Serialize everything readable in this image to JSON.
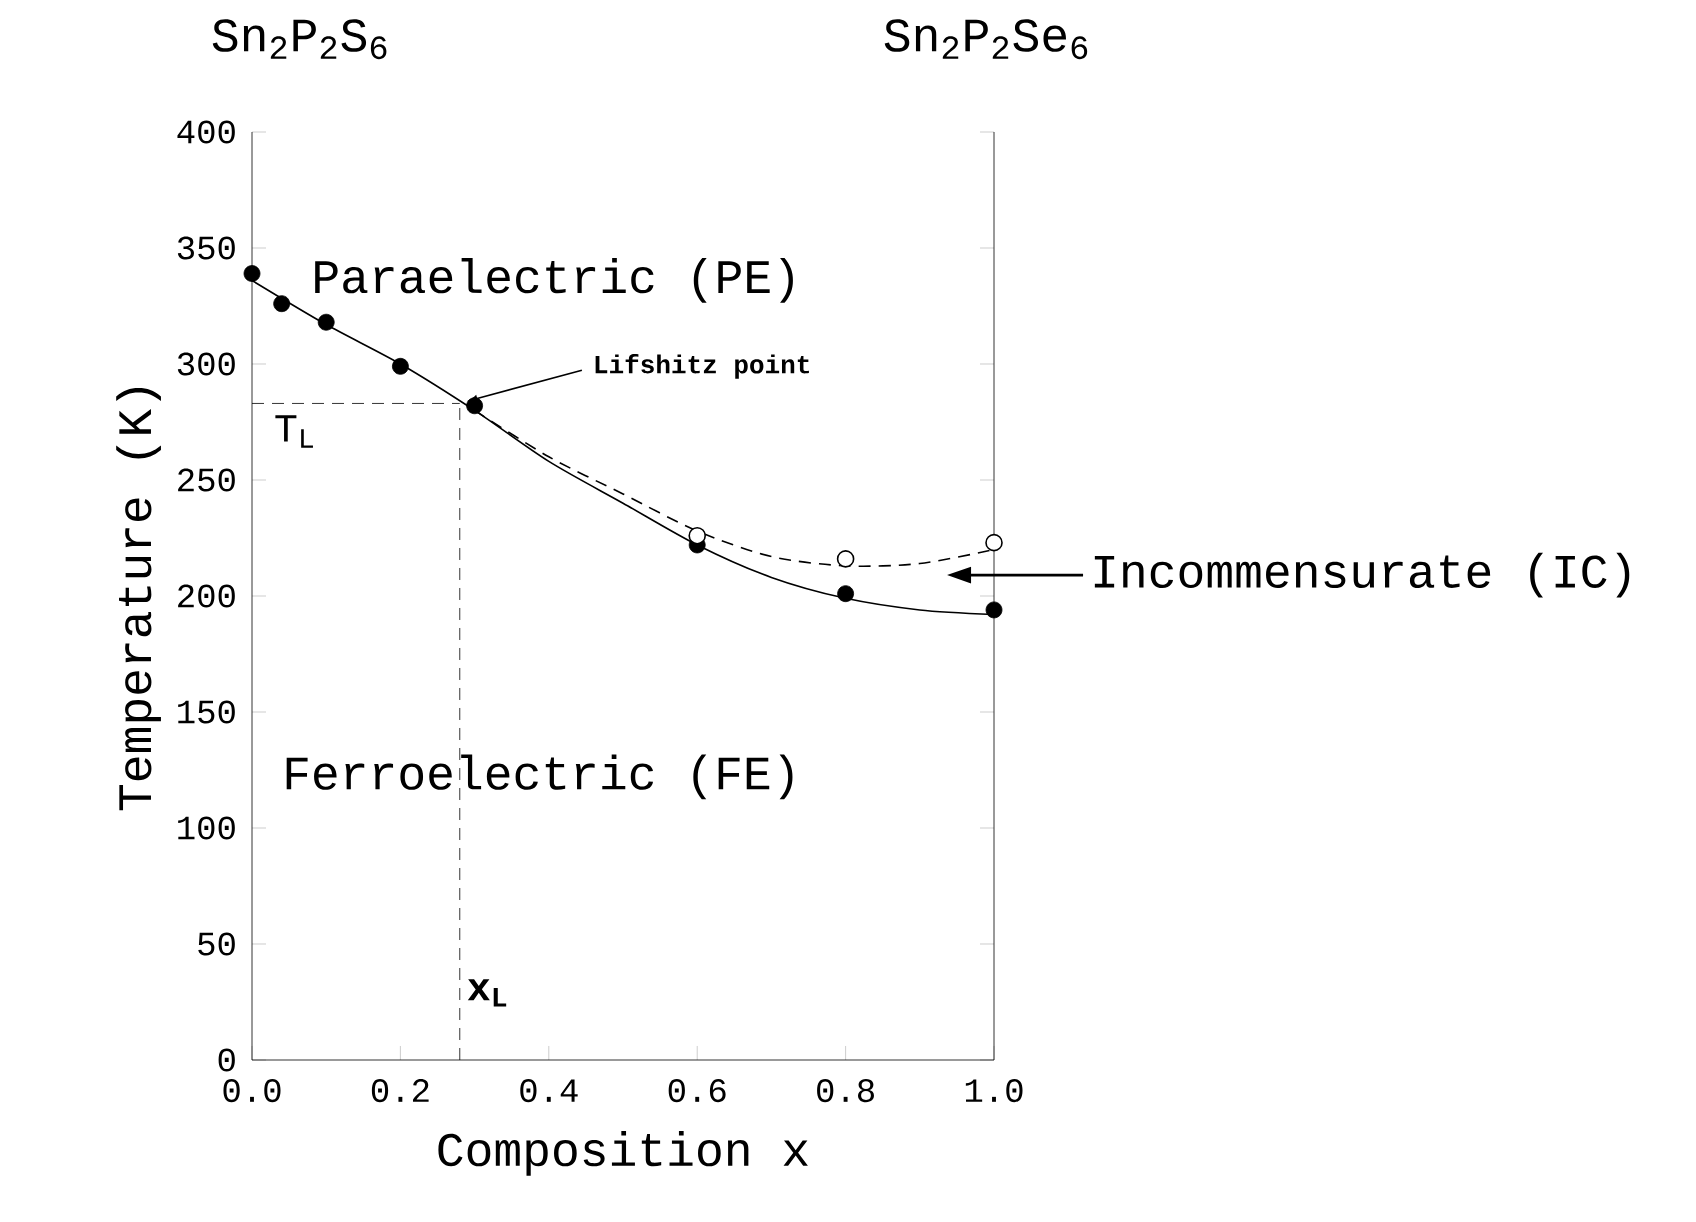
{
  "chart_data": {
    "type": "scatter",
    "xlabel": "Composition x",
    "ylabel": "Temperature (K)",
    "xlim": [
      0,
      1
    ],
    "ylim": [
      0,
      400
    ],
    "xticks": [
      {
        "value": 0,
        "label": "0.0"
      },
      0.2,
      0.4,
      0.6,
      0.8,
      {
        "value": 1,
        "label": "1.0"
      }
    ],
    "yticks": [
      0,
      50,
      100,
      150,
      200,
      250,
      300,
      350,
      400
    ],
    "series": [
      {
        "type": "line",
        "color": "#000000",
        "line_style": "solid",
        "marker": "none",
        "x": [
          0,
          0.1,
          0.2,
          0.3,
          0.4,
          0.5,
          0.6,
          0.7,
          0.8,
          0.9,
          1.0
        ],
        "values": [
          336,
          317,
          300,
          280,
          258,
          240,
          222,
          208,
          199,
          194,
          192
        ]
      },
      {
        "type": "line",
        "color": "#000000",
        "line_style": "dashed",
        "marker": "none",
        "x": [
          0.3,
          0.4,
          0.5,
          0.6,
          0.7,
          0.8,
          0.9,
          1.0
        ],
        "values": [
          280,
          260,
          244,
          228,
          217,
          213,
          214,
          220
        ]
      },
      {
        "type": "scatter",
        "color": "#000000",
        "marker": "circle",
        "x": [
          0,
          0.04,
          0.1,
          0.2,
          0.3,
          0.6,
          0.8,
          1.0
        ],
        "values": [
          339,
          326,
          318,
          299,
          282,
          222,
          201,
          194
        ]
      },
      {
        "type": "scatter",
        "color": "#000000",
        "marker": "circle",
        "x": [
          0.6,
          0.8,
          1.0
        ],
        "values": [
          226,
          216,
          223
        ]
      }
    ],
    "ref_lines": [
      {
        "axis": "x",
        "value": 0.28,
        "label": "x$_{L}$",
        "line_style": "dashed"
      },
      {
        "axis": "y",
        "value": 283,
        "label": "T$_{L}$",
        "line_style": "dashed"
      }
    ],
    "annotations": [
      "Sn$_{2}$P$_{2}$S$_{6}$",
      "Sn$_{2}$P$_{2}$Se$_{6}$",
      "Paraelectric (PE)",
      "Ferroelectric (FE)",
      {
        "text": "Lifshitz point",
        "x": 0.28,
        "y": 283
      },
      "Incommensurate (IC)"
    ]
  }
}
